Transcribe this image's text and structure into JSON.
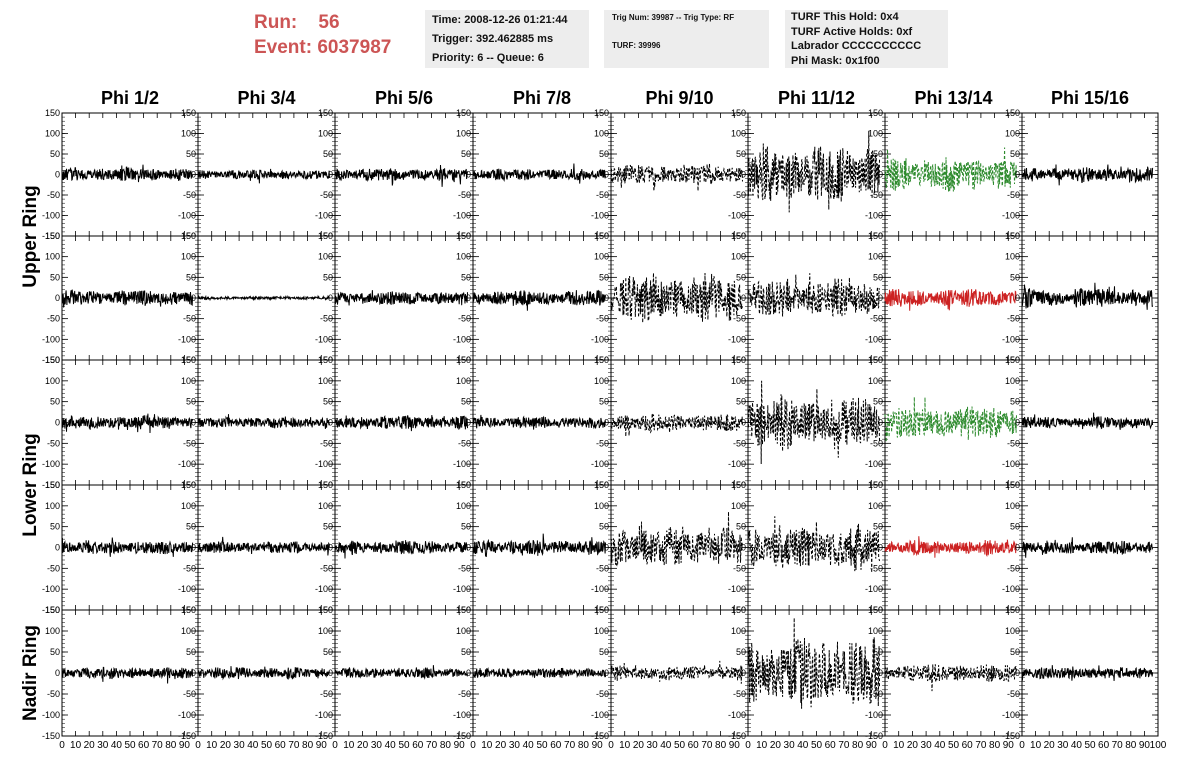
{
  "header": {
    "run_label": "Run:",
    "run_value": "56",
    "event_label": "Event:",
    "event_value": "6037987"
  },
  "info_box_1": {
    "time": "Time: 2008-12-26 01:21:44",
    "trigger": "Trigger: 392.462885 ms",
    "priority": "Priority: 6 -- Queue: 6"
  },
  "info_box_2": {
    "trig": "Trig Num: 39987 -- Trig Type: RF",
    "turf": "TURF: 39996"
  },
  "info_box_3": {
    "hold": "TURF This Hold: 0x4",
    "active": "TURF Active Holds: 0xf",
    "labrador": "Labrador CCCCCCCCCC",
    "mask": "Phi Mask: 0x1f00"
  },
  "colors": {
    "trace": "#000000",
    "trig_green": "#2e8b2e",
    "trig_red": "#cc2222",
    "header_red": "#cc5555",
    "box_bg": "#ededed"
  },
  "chart_data": {
    "type": "line",
    "columns": [
      "Phi 1/2",
      "Phi 3/4",
      "Phi 5/6",
      "Phi 7/8",
      "Phi 9/10",
      "Phi 11/12",
      "Phi 13/14",
      "Phi 15/16"
    ],
    "ring_labels": [
      "Upper Ring",
      "Lower Ring",
      "Nadir Ring"
    ],
    "row_ring": [
      0,
      0,
      1,
      1,
      2
    ],
    "ylim": [
      -150,
      150
    ],
    "xlim": [
      0,
      100
    ],
    "y_ticks": [
      -150,
      -100,
      -50,
      0,
      50,
      100,
      150
    ],
    "x_ticks": [
      0,
      10,
      20,
      30,
      40,
      50,
      60,
      70,
      80,
      90
    ],
    "x_ticks_last": [
      0,
      10,
      20,
      30,
      40,
      50,
      60,
      70,
      80,
      90,
      100
    ],
    "trace_x_range": [
      0,
      96
    ],
    "panels": [
      [
        {
          "amp": 14,
          "style": "solid",
          "color": "trace"
        },
        {
          "amp": 10,
          "style": "solid",
          "color": "trace"
        },
        {
          "amp": 13,
          "style": "solid",
          "color": "trace"
        },
        {
          "amp": 12,
          "style": "solid",
          "color": "trace"
        },
        {
          "amp": 22,
          "style": "dashed",
          "color": "trace"
        },
        {
          "amp": 60,
          "style": "dashed",
          "color": "trace"
        },
        {
          "amp": 35,
          "style": "dashed",
          "color": "trig_green"
        },
        {
          "amp": 15,
          "style": "solid",
          "color": "trace"
        }
      ],
      [
        {
          "amp": 16,
          "style": "solid",
          "color": "trace"
        },
        {
          "amp": 3,
          "style": "solid",
          "color": "trace"
        },
        {
          "amp": 14,
          "style": "solid",
          "color": "trace"
        },
        {
          "amp": 16,
          "style": "solid",
          "color": "trace"
        },
        {
          "amp": 50,
          "style": "dashed",
          "color": "trace"
        },
        {
          "amp": 40,
          "style": "dashed",
          "color": "trace"
        },
        {
          "amp": 18,
          "style": "solid",
          "color": "trig_red"
        },
        {
          "amp": 20,
          "style": "solid",
          "color": "trace"
        }
      ],
      [
        {
          "amp": 14,
          "style": "solid",
          "color": "trace"
        },
        {
          "amp": 11,
          "style": "solid",
          "color": "trace"
        },
        {
          "amp": 14,
          "style": "solid",
          "color": "trace"
        },
        {
          "amp": 12,
          "style": "solid",
          "color": "trace"
        },
        {
          "amp": 18,
          "style": "dashed",
          "color": "trace"
        },
        {
          "amp": 55,
          "style": "dashed",
          "color": "trace"
        },
        {
          "amp": 35,
          "style": "dashed",
          "color": "trig_green"
        },
        {
          "amp": 12,
          "style": "solid",
          "color": "trace"
        }
      ],
      [
        {
          "amp": 14,
          "style": "solid",
          "color": "trace"
        },
        {
          "amp": 12,
          "style": "solid",
          "color": "trace"
        },
        {
          "amp": 14,
          "style": "solid",
          "color": "trace"
        },
        {
          "amp": 16,
          "style": "solid",
          "color": "trace"
        },
        {
          "amp": 40,
          "style": "dashed",
          "color": "trace"
        },
        {
          "amp": 45,
          "style": "dashed",
          "color": "trace"
        },
        {
          "amp": 15,
          "style": "solid",
          "color": "trig_red"
        },
        {
          "amp": 14,
          "style": "solid",
          "color": "trace"
        }
      ],
      [
        {
          "amp": 12,
          "style": "solid",
          "color": "trace"
        },
        {
          "amp": 12,
          "style": "solid",
          "color": "trace"
        },
        {
          "amp": 10,
          "style": "solid",
          "color": "trace"
        },
        {
          "amp": 10,
          "style": "solid",
          "color": "trace"
        },
        {
          "amp": 15,
          "style": "dashed",
          "color": "trace"
        },
        {
          "amp": 70,
          "style": "dashed",
          "color": "trace"
        },
        {
          "amp": 18,
          "style": "dashed",
          "color": "trace"
        },
        {
          "amp": 12,
          "style": "solid",
          "color": "trace"
        }
      ]
    ]
  }
}
